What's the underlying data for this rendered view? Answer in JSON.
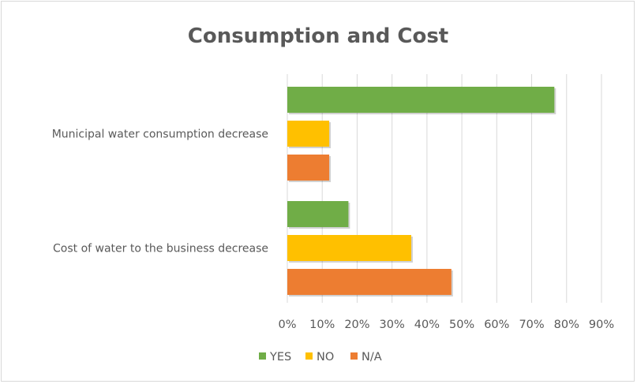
{
  "chart_data": {
    "type": "bar",
    "orientation": "horizontal",
    "title": "Consumption and Cost",
    "xlabel": "",
    "ylabel": "",
    "categories": [
      "Municipal water consumption decrease",
      "Cost of water to the business decrease"
    ],
    "series": [
      {
        "name": "YES",
        "color": "#70ad47",
        "values": [
          0.765,
          0.175
        ]
      },
      {
        "name": "NO",
        "color": "#ffc000",
        "values": [
          0.12,
          0.355
        ]
      },
      {
        "name": "N/A",
        "color": "#ed7d31",
        "values": [
          0.12,
          0.47
        ]
      }
    ],
    "xlim": [
      0,
      0.9
    ],
    "x_ticks": [
      "0%",
      "10%",
      "20%",
      "30%",
      "40%",
      "50%",
      "60%",
      "70%",
      "80%",
      "90%"
    ],
    "grid": "vertical",
    "legend_position": "bottom"
  }
}
